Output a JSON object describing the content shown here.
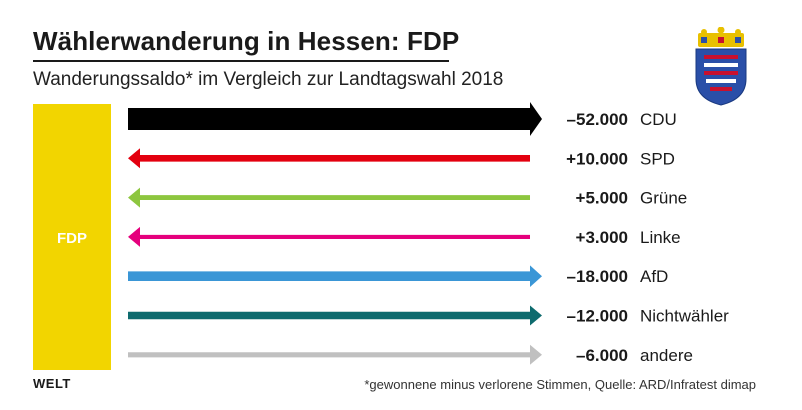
{
  "header": {
    "title": "Wählerwanderung in Hessen: FDP",
    "subtitle": "Wanderungssaldo* im Vergleich zur Landtagswahl 2018"
  },
  "party_block": {
    "label": "FDP",
    "color": "#f2d500"
  },
  "chart_data": {
    "type": "bar",
    "title": "Wählerwanderung in Hessen: FDP",
    "subtitle": "Wanderungssaldo* im Vergleich zur Landtagswahl 2018",
    "categories": [
      "CDU",
      "SPD",
      "Grüne",
      "Linke",
      "AfD",
      "Nichtwähler",
      "andere"
    ],
    "values": [
      -52000,
      10000,
      5000,
      3000,
      -18000,
      -12000,
      -6000
    ],
    "labels": [
      "–52.000",
      "+10.000",
      "+5.000",
      "+3.000",
      "–18.000",
      "–12.000",
      "–6.000"
    ],
    "colors": [
      "#000000",
      "#e3000f",
      "#8dc63f",
      "#e5007d",
      "#3a96d6",
      "#0e6b6e",
      "#c0c0c0"
    ],
    "max_abs": 52000
  },
  "footer": {
    "logo": "WELT",
    "source": "*gewonnene minus verlorene Stimmen, Quelle: ARD/Infratest dimap"
  }
}
